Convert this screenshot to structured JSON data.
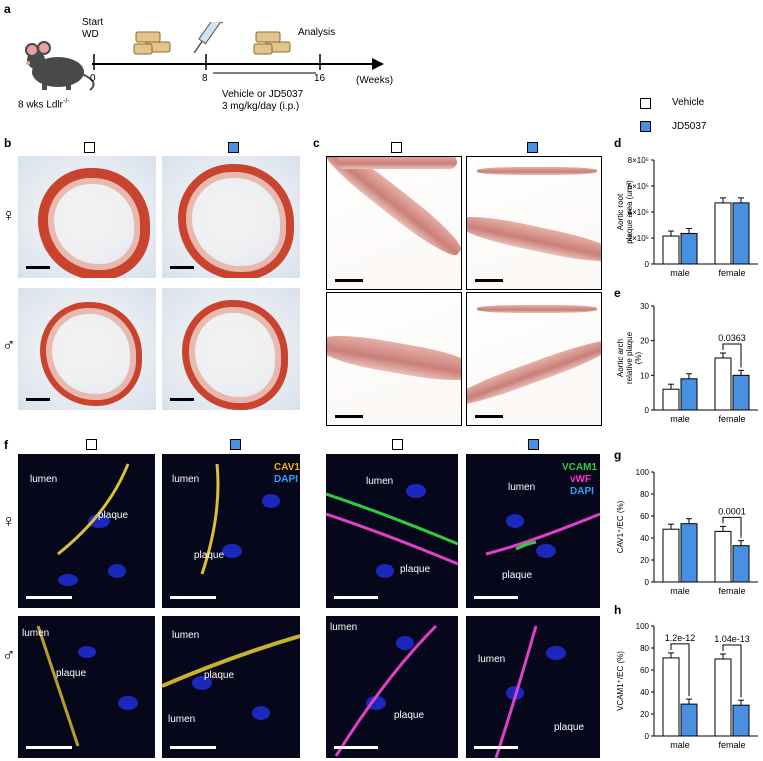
{
  "panels": {
    "a": "a",
    "b": "b",
    "c": "c",
    "d": "d",
    "e": "e",
    "f": "f",
    "g": "g",
    "h": "h"
  },
  "timeline": {
    "start_label": "Start",
    "start_sub": "WD",
    "analysis_label": "Analysis",
    "ticks": [
      "0",
      "8",
      "16"
    ],
    "unit": "(Weeks)",
    "mouse_label": "8 wks Ldlr",
    "mouse_sup": "-/-",
    "treatment_line1": "Vehicle or JD5037",
    "treatment_line2": "3 mg/kg/day (i.p.)"
  },
  "legend": {
    "vehicle": "Vehicle",
    "jd5037": "JD5037",
    "vehicle_color": "#ffffff",
    "jd5037_color": "#4a90e2"
  },
  "sex_symbols": {
    "female": "♀",
    "male": "♂"
  },
  "fluorescence_labels": {
    "cav1": "CAV1",
    "dapi": "DAPI",
    "vcam1": "VCAM1",
    "vwf": "vWF",
    "lumen": "lumen",
    "plaque": "plaque",
    "cav1_color": "#f0b400",
    "dapi_color": "#2aa4ff",
    "vcam1_color": "#2ecc40",
    "vwf_color": "#ff33cc"
  },
  "chart_data": [
    {
      "panel": "d",
      "type": "bar",
      "categories": [
        "male",
        "female"
      ],
      "series": [
        {
          "name": "Vehicle",
          "values": [
            215000,
            470000
          ]
        },
        {
          "name": "JD5037",
          "values": [
            235000,
            470000
          ]
        }
      ],
      "ylabel_line1": "Aortic root",
      "ylabel_line2": "plaque area (um²)",
      "yticks": [
        "0",
        "2×10⁵",
        "4×10⁵",
        "6×10⁵",
        "8×10⁵"
      ],
      "ylim": [
        0,
        800000
      ],
      "annotations": []
    },
    {
      "panel": "e",
      "type": "bar",
      "categories": [
        "male",
        "female"
      ],
      "series": [
        {
          "name": "Vehicle",
          "values": [
            6,
            15
          ]
        },
        {
          "name": "JD5037",
          "values": [
            9,
            10
          ]
        }
      ],
      "ylabel_line1": "Aortic arch",
      "ylabel_line2": "relative plaque",
      "ylabel_line3": "(%)",
      "yticks": [
        "0",
        "10",
        "20",
        "30"
      ],
      "ylim": [
        0,
        30
      ],
      "annotations": [
        {
          "category": "female",
          "text": "0.0363"
        }
      ]
    },
    {
      "panel": "g",
      "type": "bar",
      "categories": [
        "male",
        "female"
      ],
      "series": [
        {
          "name": "Vehicle",
          "values": [
            48,
            46
          ]
        },
        {
          "name": "JD5037",
          "values": [
            53,
            33
          ]
        }
      ],
      "ylabel_line1": "CAV1⁺/EC (%)",
      "yticks": [
        "0",
        "20",
        "40",
        "60",
        "80",
        "100"
      ],
      "ylim": [
        0,
        100
      ],
      "annotations": [
        {
          "category": "female",
          "text": "0.0001"
        }
      ]
    },
    {
      "panel": "h",
      "type": "bar",
      "categories": [
        "male",
        "female"
      ],
      "series": [
        {
          "name": "Vehicle",
          "values": [
            71,
            70
          ]
        },
        {
          "name": "JD5037",
          "values": [
            29,
            28
          ]
        }
      ],
      "ylabel_line1": "VCAM1⁺/EC (%)",
      "yticks": [
        "0",
        "20",
        "40",
        "60",
        "80",
        "100"
      ],
      "ylim": [
        0,
        100
      ],
      "annotations": [
        {
          "category": "male",
          "text": "1.2e-12"
        },
        {
          "category": "female",
          "text": "1.04e-13"
        }
      ]
    }
  ]
}
